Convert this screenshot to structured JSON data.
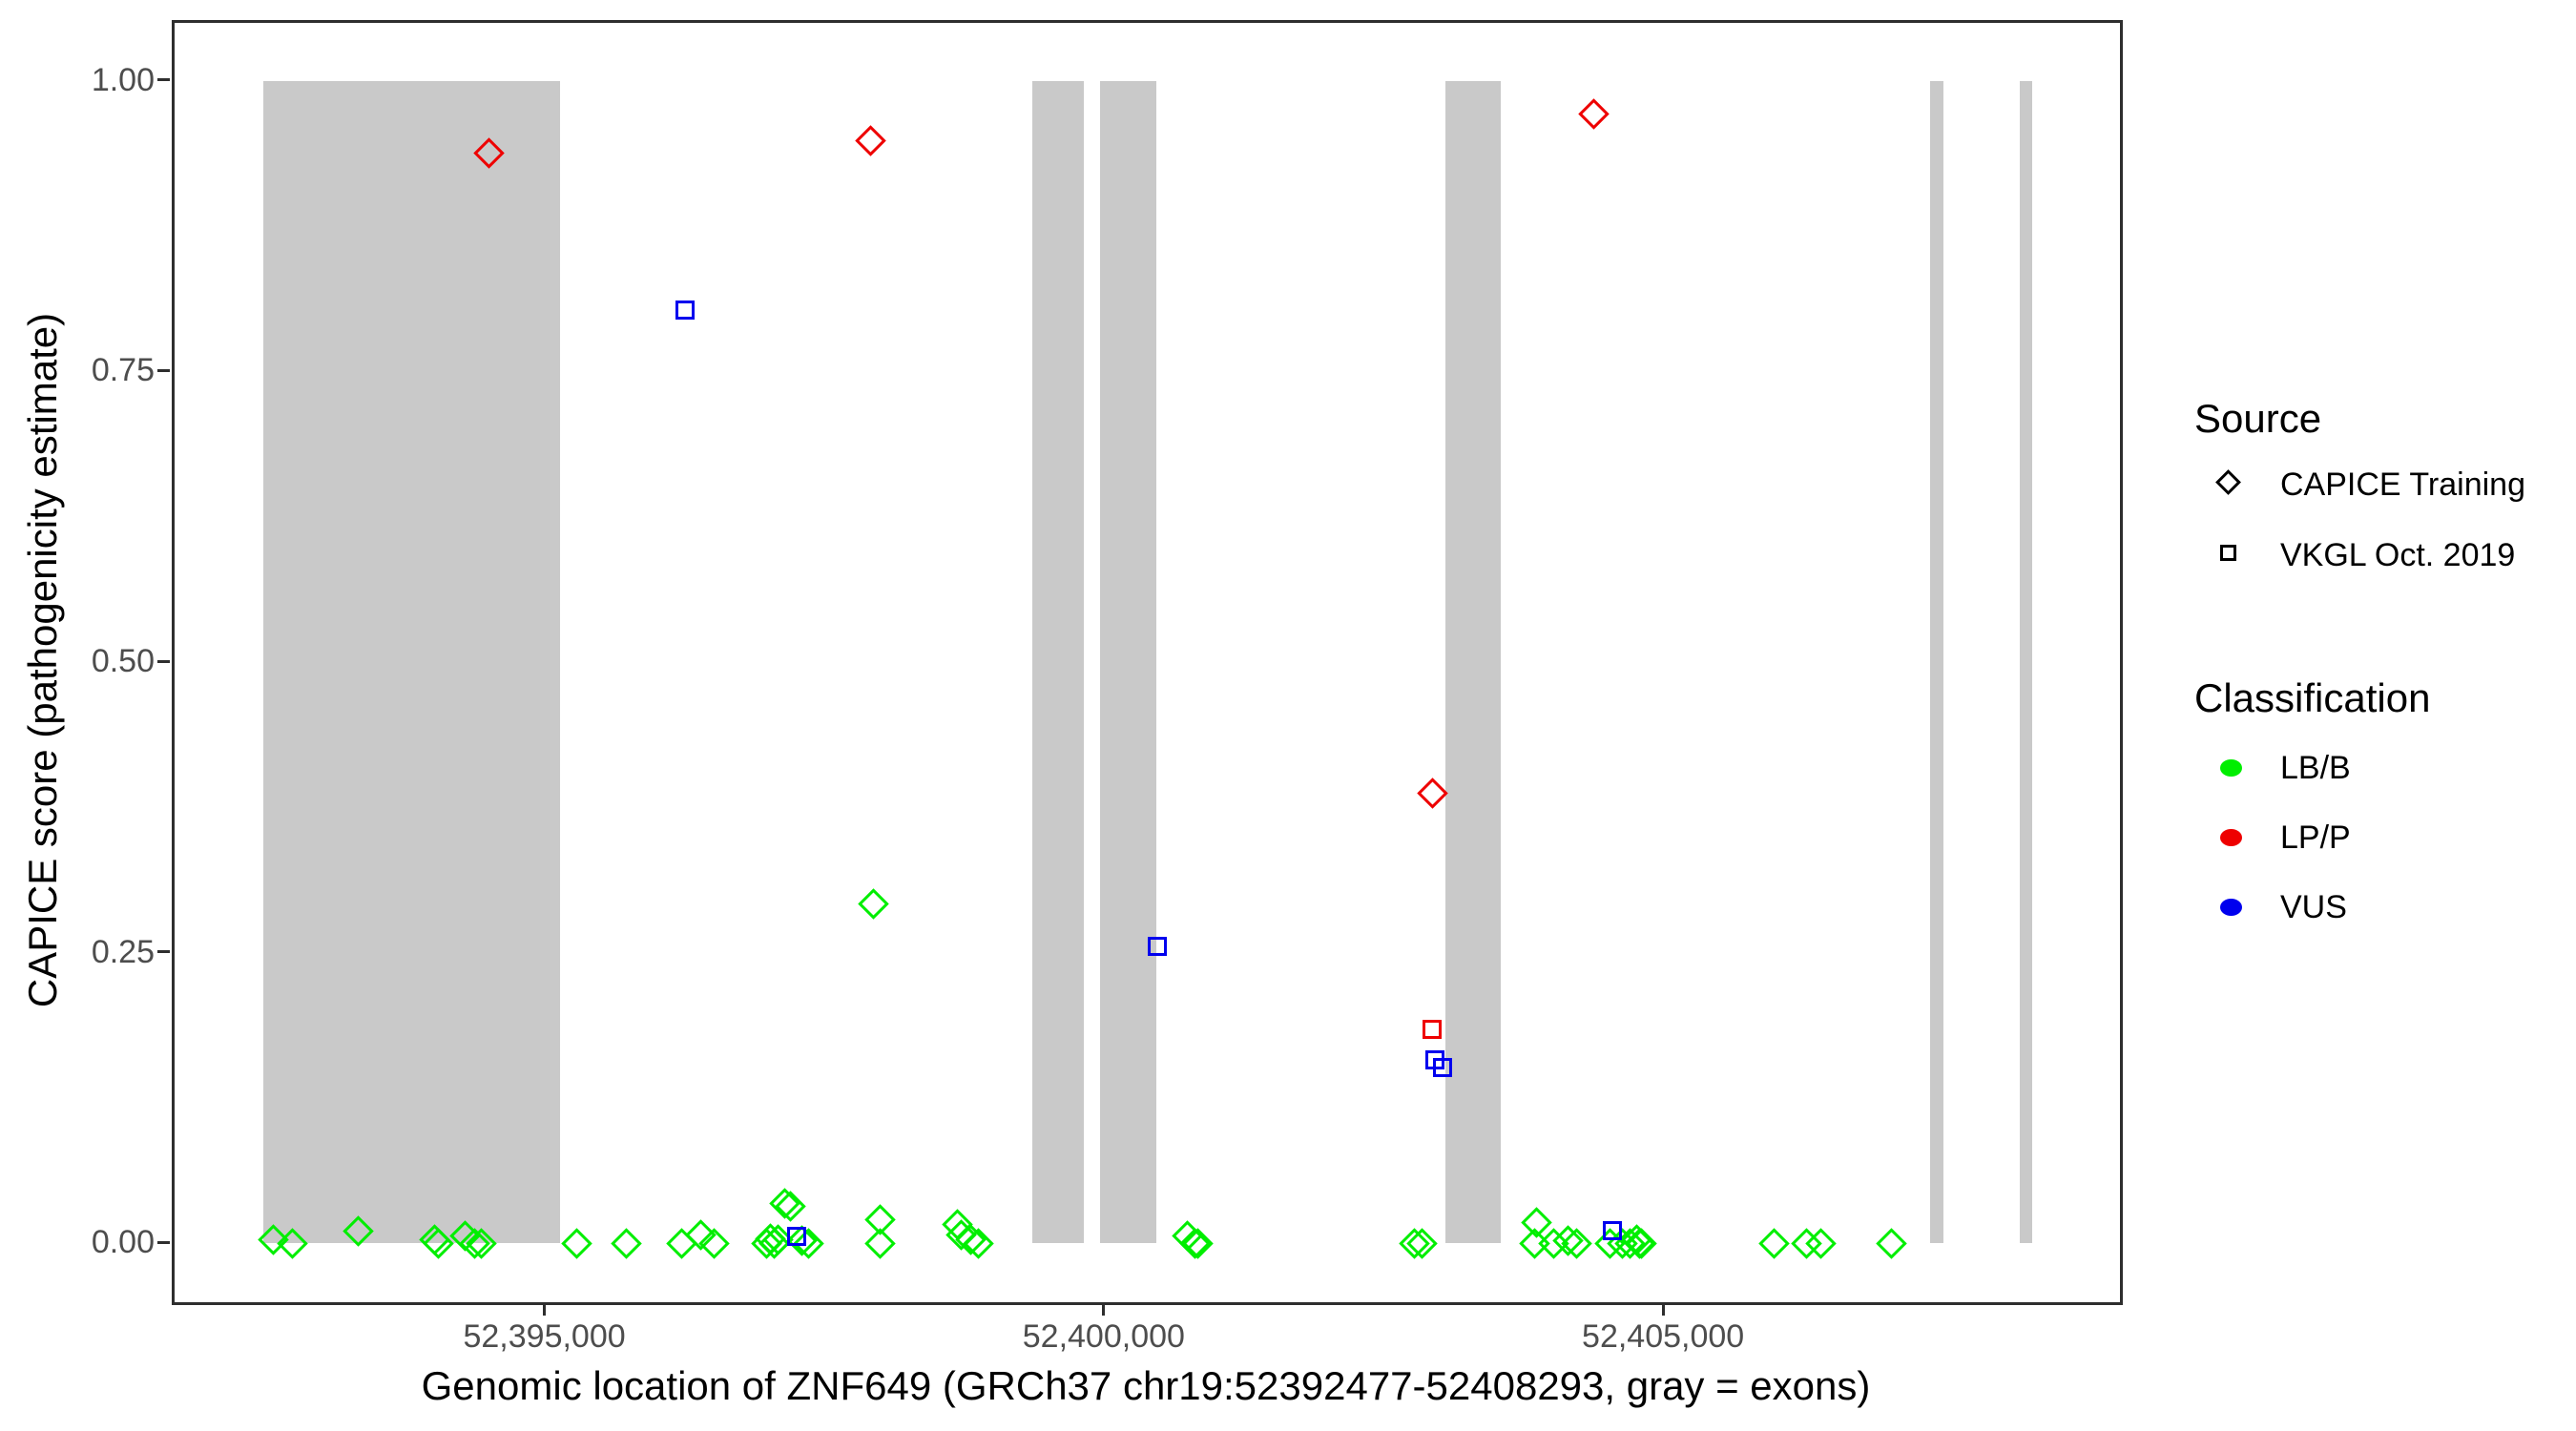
{
  "figure": {
    "background": "#FFFFFF",
    "panel_border_color": "#2E2E2E",
    "exon_color": "#C9C9C9",
    "axis_tick_color": "#2E2E2E",
    "axis_text_color": "#4D4D4D",
    "title_text_color": "#000000"
  },
  "chart_data": {
    "type": "scatter",
    "xlabel": "Genomic location of ZNF649 (GRCh37 chr19:52392477-52408293, gray = exons)",
    "ylabel": "CAPICE score (pathogenicity estimate)",
    "gene": {
      "name": "ZNF649",
      "assembly": "GRCh37",
      "chromosome": "chr19",
      "start": 52392477,
      "end": 52408293
    },
    "x_range": [
      52391686,
      52409084
    ],
    "y_range": [
      -0.05,
      1.05
    ],
    "x_ticks": [
      {
        "value": 52395000,
        "label": "52,395,000"
      },
      {
        "value": 52400000,
        "label": "52,400,000"
      },
      {
        "value": 52405000,
        "label": "52,405,000"
      }
    ],
    "y_ticks": [
      {
        "value": 0.0,
        "label": "0.00"
      },
      {
        "value": 0.25,
        "label": "0.25"
      },
      {
        "value": 0.5,
        "label": "0.50"
      },
      {
        "value": 0.75,
        "label": "0.75"
      },
      {
        "value": 1.0,
        "label": "1.00"
      }
    ],
    "exons_note": "gray vertical bands span score 0 to 1",
    "exons": [
      [
        52392477,
        52395130
      ],
      [
        52399354,
        52399810
      ],
      [
        52399960,
        52400463
      ],
      [
        52403048,
        52403543
      ],
      [
        52407380,
        52407500
      ],
      [
        52408180,
        52408293
      ]
    ],
    "legend": {
      "source": {
        "title": "Source",
        "items": [
          {
            "label": "CAPICE Training",
            "marker": "diamond"
          },
          {
            "label": "VKGL Oct. 2019",
            "marker": "square"
          }
        ]
      },
      "classification": {
        "title": "Classification",
        "items": [
          {
            "label": "LB/B",
            "color": "#00EE00"
          },
          {
            "label": "LP/P",
            "color": "#EE0000"
          },
          {
            "label": "VUS",
            "color": "#0000EE"
          }
        ]
      }
    },
    "points_columns": [
      "genomic_position",
      "capice_score",
      "source",
      "classification"
    ],
    "points": [
      [
        52392570,
        0.003,
        "CAPICE Training",
        "LB/B"
      ],
      [
        52392740,
        0.0,
        "CAPICE Training",
        "LB/B"
      ],
      [
        52393330,
        0.01,
        "CAPICE Training",
        "LB/B"
      ],
      [
        52394010,
        0.003,
        "CAPICE Training",
        "LB/B"
      ],
      [
        52394040,
        0.0,
        "CAPICE Training",
        "LB/B"
      ],
      [
        52394280,
        0.006,
        "CAPICE Training",
        "LB/B"
      ],
      [
        52394370,
        0.0,
        "CAPICE Training",
        "LB/B"
      ],
      [
        52394430,
        0.0,
        "CAPICE Training",
        "LB/B"
      ],
      [
        52395280,
        0.0,
        "CAPICE Training",
        "LB/B"
      ],
      [
        52395720,
        0.0,
        "CAPICE Training",
        "LB/B"
      ],
      [
        52396220,
        0.0,
        "CAPICE Training",
        "LB/B"
      ],
      [
        52396390,
        0.007,
        "CAPICE Training",
        "LB/B"
      ],
      [
        52396510,
        0.0,
        "CAPICE Training",
        "LB/B"
      ],
      [
        52396980,
        0.0,
        "CAPICE Training",
        "LB/B"
      ],
      [
        52397010,
        0.004,
        "CAPICE Training",
        "LB/B"
      ],
      [
        52397050,
        0.0,
        "CAPICE Training",
        "LB/B"
      ],
      [
        52397080,
        0.003,
        "CAPICE Training",
        "LB/B"
      ],
      [
        52397140,
        0.034,
        "CAPICE Training",
        "LB/B"
      ],
      [
        52397190,
        0.032,
        "CAPICE Training",
        "LB/B"
      ],
      [
        52397290,
        0.002,
        "CAPICE Training",
        "LB/B"
      ],
      [
        52397350,
        0.0,
        "CAPICE Training",
        "LB/B"
      ],
      [
        52397930,
        0.292,
        "CAPICE Training",
        "LB/B"
      ],
      [
        52397990,
        0.02,
        "CAPICE Training",
        "LB/B"
      ],
      [
        52397990,
        0.0,
        "CAPICE Training",
        "LB/B"
      ],
      [
        52398680,
        0.016,
        "CAPICE Training",
        "LB/B"
      ],
      [
        52398720,
        0.007,
        "CAPICE Training",
        "LB/B"
      ],
      [
        52398800,
        0.003,
        "CAPICE Training",
        "LB/B"
      ],
      [
        52398870,
        0.0,
        "CAPICE Training",
        "LB/B"
      ],
      [
        52400740,
        0.006,
        "CAPICE Training",
        "LB/B"
      ],
      [
        52400810,
        0.0,
        "CAPICE Training",
        "LB/B"
      ],
      [
        52400830,
        0.0,
        "CAPICE Training",
        "LB/B"
      ],
      [
        52402770,
        0.0,
        "CAPICE Training",
        "LB/B"
      ],
      [
        52402840,
        0.0,
        "CAPICE Training",
        "LB/B"
      ],
      [
        52403840,
        0.0,
        "CAPICE Training",
        "LB/B"
      ],
      [
        52403860,
        0.018,
        "CAPICE Training",
        "LB/B"
      ],
      [
        52404010,
        0.0,
        "CAPICE Training",
        "LB/B"
      ],
      [
        52404140,
        0.002,
        "CAPICE Training",
        "LB/B"
      ],
      [
        52404220,
        0.0,
        "CAPICE Training",
        "LB/B"
      ],
      [
        52404520,
        0.0,
        "CAPICE Training",
        "LB/B"
      ],
      [
        52404630,
        0.0,
        "CAPICE Training",
        "LB/B"
      ],
      [
        52404700,
        0.0,
        "CAPICE Training",
        "LB/B"
      ],
      [
        52404760,
        0.003,
        "CAPICE Training",
        "LB/B"
      ],
      [
        52404780,
        0.0,
        "CAPICE Training",
        "LB/B"
      ],
      [
        52404800,
        0.0,
        "CAPICE Training",
        "LB/B"
      ],
      [
        52405980,
        0.0,
        "CAPICE Training",
        "LB/B"
      ],
      [
        52406270,
        0.0,
        "CAPICE Training",
        "LB/B"
      ],
      [
        52406400,
        0.0,
        "CAPICE Training",
        "LB/B"
      ],
      [
        52407030,
        0.0,
        "CAPICE Training",
        "LB/B"
      ],
      [
        52394500,
        0.938,
        "CAPICE Training",
        "LP/P"
      ],
      [
        52397910,
        0.949,
        "CAPICE Training",
        "LP/P"
      ],
      [
        52402930,
        0.387,
        "CAPICE Training",
        "LP/P"
      ],
      [
        52404370,
        0.972,
        "CAPICE Training",
        "LP/P"
      ],
      [
        52402930,
        0.184,
        "VKGL Oct. 2019",
        "LP/P"
      ],
      [
        52396250,
        0.803,
        "VKGL Oct. 2019",
        "VUS"
      ],
      [
        52397250,
        0.006,
        "VKGL Oct. 2019",
        "VUS"
      ],
      [
        52400470,
        0.255,
        "VKGL Oct. 2019",
        "VUS"
      ],
      [
        52402950,
        0.158,
        "VKGL Oct. 2019",
        "VUS"
      ],
      [
        52403020,
        0.151,
        "VKGL Oct. 2019",
        "VUS"
      ],
      [
        52404540,
        0.011,
        "VKGL Oct. 2019",
        "VUS"
      ]
    ]
  }
}
